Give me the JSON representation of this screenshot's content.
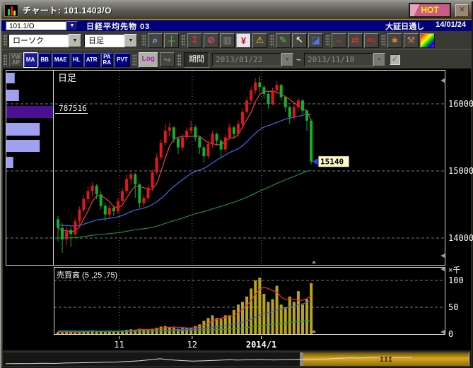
{
  "window": {
    "title": "チャート: 101.1403/O",
    "hot_badge": "HOT",
    "close_glyph": "✕"
  },
  "instrument_bar": {
    "symbol": "101.1/O",
    "name": "日経平均先物 03",
    "session": "大証日通し",
    "date": "14/01/24"
  },
  "toolbar2": {
    "chart_type": "ローソク",
    "timeframe": "日足",
    "icons": [
      {
        "name": "zoom-icon",
        "glyph": "⌕",
        "color": "#7fb2ff",
        "group": true
      },
      {
        "name": "crosshair-icon",
        "glyph": "┼",
        "color": "#55bb55"
      },
      {
        "name": "data-download-icon",
        "glyph": "↧",
        "color": "#dd3344",
        "group": true
      },
      {
        "name": "circled-2-off-icon",
        "glyph": "⊘",
        "color": "#ee4488"
      },
      {
        "name": "bar-chart-icon",
        "glyph": "▥",
        "color": "#8a8a8a",
        "disabled": true
      },
      {
        "name": "yen-scale-icon",
        "glyph": "¥",
        "color": "#cc1111",
        "selected": true
      },
      {
        "name": "alert-icon",
        "glyph": "⚠",
        "color": "#ffcc00"
      },
      {
        "name": "draw-pen-icon",
        "glyph": "✎",
        "color": "#55cc44",
        "group": true
      },
      {
        "name": "select-cursor-icon",
        "glyph": "↖",
        "color": "#e8e8e8"
      },
      {
        "name": "eraser-icon",
        "glyph": "◪",
        "color": "#5577ee"
      },
      {
        "name": "widen-bars-icon",
        "glyph": "⇔",
        "color": "#dd3333",
        "group": true
      },
      {
        "name": "narrow-bars-icon",
        "glyph": "⇄",
        "color": "#dd3333"
      },
      {
        "name": "show-all-icon",
        "glyph": "ALL",
        "color": "#ee2222",
        "small": true
      },
      {
        "name": "pattern-icon",
        "glyph": "∗",
        "color": "#ee8822",
        "group": true
      },
      {
        "name": "settings-tools-icon",
        "glyph": "⚒",
        "color": "#cc7755"
      },
      {
        "name": "palette-icon",
        "glyph": "",
        "color": "#fff",
        "rainbow": true
      }
    ]
  },
  "toolbar3": {
    "indicators": [
      {
        "label": "VW\nAP",
        "name": "vwap-button",
        "state": "disabled"
      },
      {
        "label": "MA",
        "name": "ma-button",
        "state": "selected"
      },
      {
        "label": "BB",
        "name": "bb-button",
        "state": ""
      },
      {
        "label": "MAE",
        "name": "mae-button",
        "state": ""
      },
      {
        "label": "HL",
        "name": "hl-button",
        "state": ""
      },
      {
        "label": "ATR",
        "name": "atr-button",
        "state": ""
      },
      {
        "label": "PA\nRA",
        "name": "para-button",
        "state": ""
      },
      {
        "label": "PVT",
        "name": "pvt-button",
        "state": ""
      }
    ],
    "log_label": "Log",
    "arrow_glyph": "↪",
    "period_label": "期間",
    "date_from": "2013/01/22",
    "date_to": "2013/11/18",
    "tilde": "~",
    "check_glyph": "✓"
  },
  "chart_data": {
    "type": "candlestick",
    "pane_label": "日足",
    "volume_pane_label": "売買高 (5 ,25 ,75)",
    "volume_unit": "×千",
    "price_ticks": [
      16000,
      15000,
      14000
    ],
    "volume_ticks": [
      100,
      50,
      0
    ],
    "x_ticks": [
      {
        "label": "11",
        "i": 14.6,
        "bold": false
      },
      {
        "label": "12",
        "i": 31.6,
        "bold": false
      },
      {
        "label": "2014/1",
        "i": 47.7,
        "bold": true
      }
    ],
    "last_price_label": "15140",
    "last_price": 15140,
    "up_color": "#e01818",
    "down_color": "#16b028",
    "volume_color": "#b7a41c",
    "grid_color": "#7a7a7a",
    "volume_profile": {
      "label": "787516",
      "bar_color": "#a0a0f0",
      "highlight_color": "#4a1090",
      "bars": [
        {
          "w": 0.19,
          "highlight": false
        },
        {
          "w": 0.28,
          "highlight": false
        },
        {
          "w": 1.0,
          "highlight": true
        },
        {
          "w": 0.72,
          "highlight": false
        },
        {
          "w": 0.72,
          "highlight": false
        },
        {
          "w": 0.16,
          "highlight": false
        }
      ]
    },
    "ma_price": [
      {
        "period": 5,
        "seed": 14150,
        "color": "#e84054"
      },
      {
        "period": 25,
        "seed": 14200,
        "color": "#4468e8"
      },
      {
        "period": 75,
        "seed": 14000,
        "color": "#1d8c3e"
      }
    ],
    "ma_volume": [
      {
        "period": 5,
        "seed": 4,
        "color": "#e83040"
      },
      {
        "period": 25,
        "seed": 5,
        "color": "#3a5ae8"
      },
      {
        "period": 75,
        "seed": 6,
        "color": "#22a040"
      }
    ],
    "candles": [
      [
        14280,
        14330,
        13950,
        14150,
        4
      ],
      [
        14150,
        14220,
        13780,
        13980,
        3
      ],
      [
        13980,
        14180,
        13900,
        14120,
        5
      ],
      [
        14120,
        14160,
        13870,
        14060,
        4
      ],
      [
        14060,
        14300,
        14020,
        14250,
        3
      ],
      [
        14250,
        14470,
        14200,
        14420,
        5
      ],
      [
        14420,
        14640,
        14380,
        14580,
        6
      ],
      [
        14580,
        14760,
        14520,
        14700,
        5
      ],
      [
        14700,
        14830,
        14620,
        14780,
        7
      ],
      [
        14780,
        14800,
        14580,
        14650,
        6
      ],
      [
        14650,
        14700,
        14430,
        14480,
        5
      ],
      [
        14480,
        14520,
        14260,
        14350,
        4
      ],
      [
        14350,
        14500,
        14300,
        14450,
        5
      ],
      [
        14450,
        14480,
        14330,
        14400,
        4
      ],
      [
        14400,
        14600,
        14360,
        14550,
        6
      ],
      [
        14550,
        14740,
        14500,
        14700,
        7
      ],
      [
        14700,
        14950,
        14650,
        14880,
        8
      ],
      [
        14880,
        15000,
        14800,
        14950,
        9
      ],
      [
        14950,
        14970,
        14600,
        14800,
        8
      ],
      [
        14800,
        14820,
        14450,
        14520,
        10
      ],
      [
        14520,
        14650,
        14470,
        14600,
        9
      ],
      [
        14600,
        14800,
        14560,
        14750,
        8
      ],
      [
        14750,
        15020,
        14700,
        14980,
        10
      ],
      [
        14980,
        15260,
        14940,
        15200,
        12
      ],
      [
        15200,
        15470,
        15160,
        15420,
        14
      ],
      [
        15420,
        15700,
        15380,
        15600,
        15
      ],
      [
        15600,
        15720,
        15520,
        15650,
        13
      ],
      [
        15650,
        15660,
        15420,
        15480,
        12
      ],
      [
        15480,
        15500,
        15250,
        15350,
        10
      ],
      [
        15350,
        15550,
        15300,
        15500,
        11
      ],
      [
        15500,
        15650,
        15450,
        15600,
        12
      ],
      [
        15600,
        15750,
        15550,
        15650,
        12
      ],
      [
        15650,
        15680,
        15440,
        15500,
        15
      ],
      [
        15500,
        15520,
        15250,
        15350,
        18
      ],
      [
        15350,
        15380,
        15120,
        15220,
        25
      ],
      [
        15220,
        15450,
        15180,
        15400,
        30
      ],
      [
        15400,
        15600,
        15350,
        15550,
        35
      ],
      [
        15550,
        15570,
        15380,
        15450,
        30
      ],
      [
        15450,
        15470,
        15200,
        15320,
        28
      ],
      [
        15320,
        15550,
        15280,
        15500,
        35
      ],
      [
        15500,
        15700,
        15460,
        15650,
        35
      ],
      [
        15650,
        15670,
        15480,
        15550,
        45
      ],
      [
        15550,
        15750,
        15500,
        15700,
        55
      ],
      [
        15700,
        15930,
        15660,
        15880,
        60
      ],
      [
        15880,
        16100,
        15840,
        16050,
        70
      ],
      [
        16050,
        16250,
        16000,
        16200,
        85
      ],
      [
        16200,
        16380,
        16150,
        16320,
        100
      ],
      [
        16320,
        16410,
        16180,
        16250,
        105
      ],
      [
        16250,
        16280,
        16080,
        16150,
        75
      ],
      [
        16150,
        16170,
        15930,
        16000,
        60
      ],
      [
        16000,
        16240,
        15980,
        16200,
        65
      ],
      [
        16200,
        16340,
        16150,
        16280,
        90
      ],
      [
        16280,
        16300,
        16050,
        16100,
        55
      ],
      [
        16100,
        16120,
        15880,
        15950,
        50
      ],
      [
        15950,
        15970,
        15700,
        15800,
        70
      ],
      [
        15800,
        15980,
        15760,
        15950,
        60
      ],
      [
        15950,
        16090,
        15900,
        16050,
        80
      ],
      [
        16050,
        16070,
        15850,
        15900,
        55
      ],
      [
        15900,
        15920,
        15600,
        15750,
        65
      ],
      [
        15750,
        15770,
        15100,
        15140,
        95
      ]
    ],
    "navigator": {
      "grip": "III",
      "line_color": "#dddddd",
      "points": [
        [
          0,
          0.92
        ],
        [
          0.03,
          0.9
        ],
        [
          0.06,
          0.91
        ],
        [
          0.09,
          0.88
        ],
        [
          0.12,
          0.89
        ],
        [
          0.15,
          0.85
        ],
        [
          0.18,
          0.83
        ],
        [
          0.21,
          0.8
        ],
        [
          0.24,
          0.78
        ],
        [
          0.27,
          0.76
        ],
        [
          0.3,
          0.7
        ],
        [
          0.33,
          0.62
        ],
        [
          0.36,
          0.5
        ],
        [
          0.38,
          0.42
        ],
        [
          0.4,
          0.52
        ],
        [
          0.43,
          0.6
        ],
        [
          0.46,
          0.66
        ],
        [
          0.49,
          0.62
        ],
        [
          0.52,
          0.58
        ],
        [
          0.55,
          0.52
        ],
        [
          0.57,
          0.56
        ],
        [
          0.6,
          0.52
        ],
        [
          0.63,
          0.5
        ],
        [
          0.66,
          0.54
        ],
        [
          0.69,
          0.5
        ],
        [
          0.72,
          0.48
        ],
        [
          0.74,
          0.52
        ],
        [
          0.76,
          0.48
        ],
        [
          0.79,
          0.44
        ],
        [
          0.82,
          0.38
        ],
        [
          0.85,
          0.32
        ],
        [
          0.87,
          0.36
        ],
        [
          0.89,
          0.3
        ],
        [
          0.91,
          0.26
        ],
        [
          0.93,
          0.22
        ],
        [
          0.95,
          0.28
        ],
        [
          0.97,
          0.3
        ],
        [
          1.0,
          0.28
        ]
      ]
    }
  }
}
